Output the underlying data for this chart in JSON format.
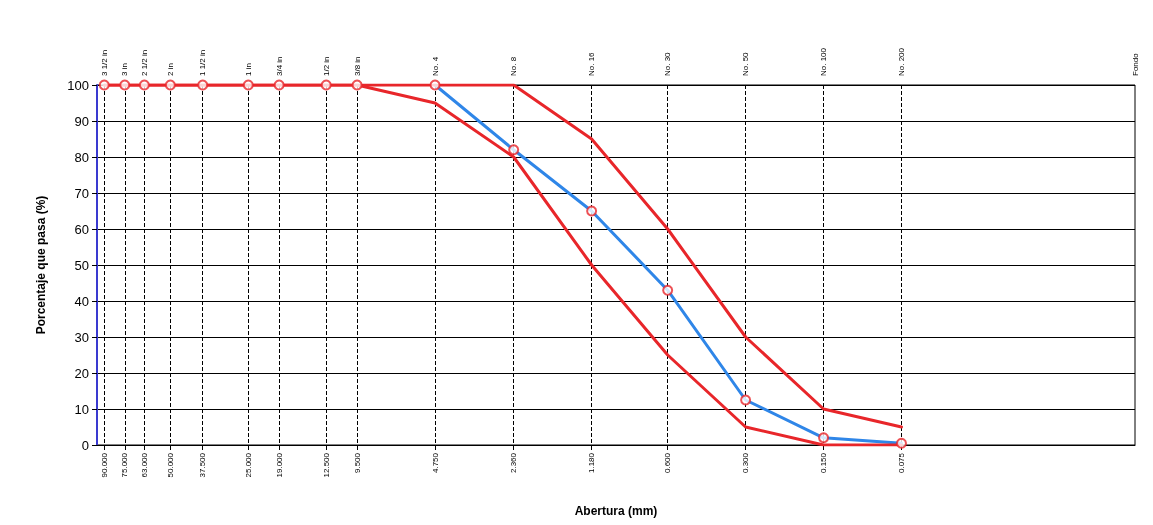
{
  "chart_data": {
    "type": "line",
    "xlabel": "Abertura (mm)",
    "ylabel": "Porcentaje que pasa (%)",
    "log": "x",
    "xlim": [
      96,
      0.0094
    ],
    "ylim": [
      0,
      100
    ],
    "yticks": [
      0,
      10,
      20,
      30,
      40,
      50,
      60,
      70,
      80,
      90,
      100
    ],
    "xticks": [
      {
        "value": 90,
        "label": "90.000"
      },
      {
        "value": 75,
        "label": "75.000"
      },
      {
        "value": 63,
        "label": "63.000"
      },
      {
        "value": 50,
        "label": "50.000"
      },
      {
        "value": 37.5,
        "label": "37.500"
      },
      {
        "value": 25,
        "label": "25.000"
      },
      {
        "value": 19,
        "label": "19.000"
      },
      {
        "value": 12.5,
        "label": "12.500"
      },
      {
        "value": 9.5,
        "label": "9.500"
      },
      {
        "value": 4.75,
        "label": "4.750"
      },
      {
        "value": 2.36,
        "label": "2.360"
      },
      {
        "value": 1.18,
        "label": "1.180"
      },
      {
        "value": 0.6,
        "label": "0.600"
      },
      {
        "value": 0.3,
        "label": "0.300"
      },
      {
        "value": 0.15,
        "label": "0.150"
      },
      {
        "value": 0.075,
        "label": "0.075"
      }
    ],
    "annotations": [
      "3 1/2 in",
      "3 in",
      "2 1/2 in",
      "2 in",
      "1 1/2 in",
      "1 in",
      "3/4 in",
      "1/2 in",
      "3/8 in",
      "No. 4",
      "No. 8",
      "No. 16",
      "No. 30",
      "No. 50",
      "No. 100",
      "No. 200",
      "Fondo"
    ],
    "grid": true,
    "series": [
      {
        "color": "#2f86e8",
        "marker": "none",
        "x": [
          4.75,
          2.36,
          1.18,
          0.6,
          0.3,
          0.15,
          0.075
        ],
        "values": [
          100,
          82,
          65,
          43,
          12.5,
          2,
          0.5
        ]
      },
      {
        "type": "scatter",
        "color": "#e8262a",
        "marker": "circle",
        "x": [
          90,
          75,
          63,
          50,
          37.5,
          25,
          19,
          12.5,
          9.5,
          4.75,
          2.36,
          1.18,
          0.6,
          0.3,
          0.15,
          0.075
        ],
        "values": [
          100,
          100,
          100,
          100,
          100,
          100,
          100,
          100,
          100,
          100,
          82,
          65,
          43,
          12.5,
          2,
          0.5
        ]
      },
      {
        "color": "#e8262a",
        "marker": "none",
        "x": [
          90,
          75,
          63,
          50,
          37.5,
          25,
          19,
          12.5,
          9.5,
          4.75,
          2.36,
          1.18,
          0.6,
          0.3,
          0.15,
          0.075
        ],
        "values": [
          100,
          100,
          100,
          100,
          100,
          100,
          100,
          100,
          100,
          100,
          100,
          85,
          60,
          30,
          10,
          5
        ]
      },
      {
        "color": "#e8262a",
        "marker": "none",
        "x": [
          90,
          75,
          63,
          50,
          37.5,
          25,
          19,
          12.5,
          9.5,
          4.75,
          2.36,
          1.18,
          0.6,
          0.3,
          0.15,
          0.075
        ],
        "values": [
          100,
          100,
          100,
          100,
          100,
          100,
          100,
          100,
          100,
          95,
          80,
          50,
          25,
          5,
          0,
          0
        ]
      }
    ]
  }
}
